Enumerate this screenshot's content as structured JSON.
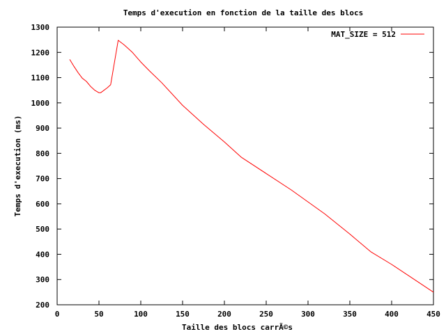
{
  "chart_data": {
    "type": "line",
    "title": "Temps d'execution en fonction de la taille des blocs",
    "xlabel": "Taille des blocs carrÃ©s",
    "ylabel": "Temps d'execution (ms)",
    "xlim": [
      0,
      450
    ],
    "ylim": [
      200,
      1300
    ],
    "xticks": [
      0,
      50,
      100,
      150,
      200,
      250,
      300,
      350,
      400,
      450
    ],
    "yticks": [
      200,
      300,
      400,
      500,
      600,
      700,
      800,
      900,
      1000,
      1100,
      1200,
      1300
    ],
    "grid": false,
    "legend_position": "top-right",
    "series": [
      {
        "name": "MAT_SIZE = 512",
        "color": "#ff0000",
        "x": [
          15,
          20,
          25,
          30,
          35,
          40,
          45,
          50,
          52,
          60,
          64,
          73,
          80,
          85,
          90,
          100,
          110,
          125,
          150,
          175,
          200,
          220,
          250,
          280,
          320,
          350,
          375,
          400,
          425,
          450
        ],
        "y": [
          1172,
          1145,
          1120,
          1098,
          1085,
          1065,
          1050,
          1040,
          1040,
          1060,
          1072,
          1248,
          1230,
          1215,
          1200,
          1162,
          1128,
          1080,
          990,
          915,
          845,
          785,
          720,
          655,
          560,
          480,
          410,
          360,
          305,
          250
        ]
      }
    ]
  }
}
